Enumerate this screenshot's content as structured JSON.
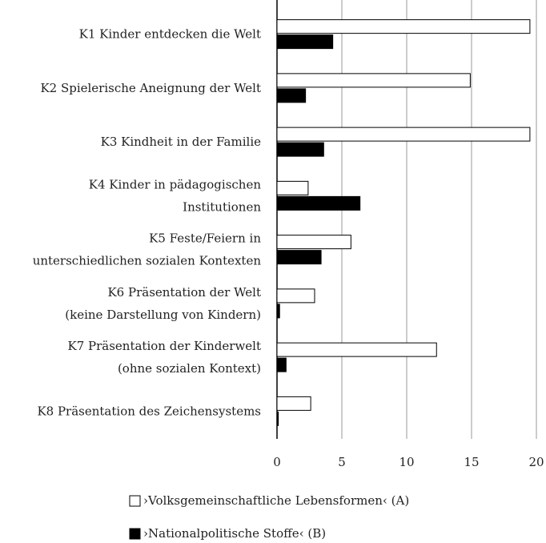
{
  "chart_data": {
    "type": "bar",
    "orientation": "horizontal",
    "categories": [
      [
        "K1 Kinder entdecken die Welt"
      ],
      [
        "K2 Spielerische Aneignung der Welt"
      ],
      [
        "K3 Kindheit in der Familie"
      ],
      [
        "K4 Kinder in pädagogischen",
        "Institutionen"
      ],
      [
        "K5 Feste/Feiern in",
        "unterschiedlichen sozialen Kontexten"
      ],
      [
        "K6 Präsentation der Welt",
        "(keine Darstellung von Kindern)"
      ],
      [
        "K7 Präsentation der Kinderwelt",
        "(ohne sozialen Kontext)"
      ],
      [
        "K8 Präsentation des Zeichensystems"
      ]
    ],
    "series": [
      {
        "name": "›Volksgemeinschaftliche Lebensformen‹ (A)",
        "color": "#ffffff",
        "values": [
          19.5,
          14.9,
          19.5,
          2.4,
          5.7,
          2.9,
          12.3,
          2.6
        ]
      },
      {
        "name": "›Nationalpolitische Stoffe‹ (B)",
        "color": "#000000",
        "values": [
          4.3,
          2.2,
          3.6,
          6.4,
          3.4,
          0.2,
          0.7,
          0.1
        ]
      }
    ],
    "xlim": [
      0,
      20
    ],
    "xticks": [
      0,
      5,
      10,
      15,
      20
    ],
    "grid": true,
    "legend": "bottom"
  }
}
